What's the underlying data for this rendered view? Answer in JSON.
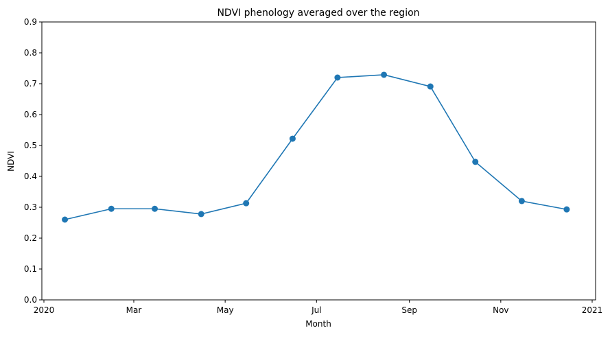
{
  "chart_data": {
    "type": "line",
    "title": "NDVI phenology averaged over the region",
    "xlabel": "Month",
    "ylabel": "NDVI",
    "ylim": [
      0.0,
      0.9
    ],
    "yticks": [
      "0.0",
      "0.1",
      "0.2",
      "0.3",
      "0.4",
      "0.5",
      "0.6",
      "0.7",
      "0.8",
      "0.9"
    ],
    "xticks": [
      "2020",
      "Mar",
      "May",
      "Jul",
      "Sep",
      "Nov",
      "2021"
    ],
    "grid": false,
    "legend": null,
    "series": [
      {
        "name": "NDVI",
        "color": "#1f77b4",
        "marker": "circle",
        "x": [
          "2020-01-15",
          "2020-02-15",
          "2020-03-15",
          "2020-04-15",
          "2020-05-15",
          "2020-06-15",
          "2020-07-15",
          "2020-08-15",
          "2020-09-15",
          "2020-10-15",
          "2020-11-15",
          "2020-12-15"
        ],
        "values": [
          0.26,
          0.295,
          0.295,
          0.278,
          0.313,
          0.522,
          0.72,
          0.729,
          0.691,
          0.447,
          0.32,
          0.293
        ]
      }
    ]
  }
}
